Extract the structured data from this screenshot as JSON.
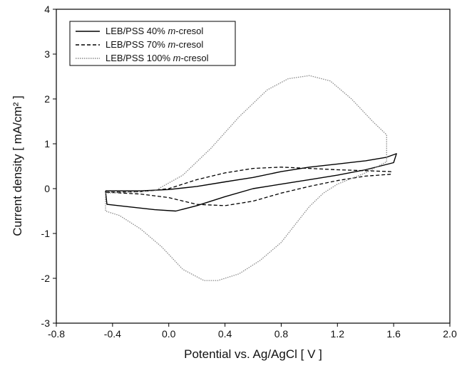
{
  "chart_data": {
    "type": "line",
    "xlabel": "Potential vs. Ag/AgCl  [ V ]",
    "ylabel": "Current density  [ mA/cm² ]",
    "xlim": [
      -0.8,
      2.0
    ],
    "ylim": [
      -3,
      4
    ],
    "xticks": [
      -0.8,
      -0.4,
      0.0,
      0.4,
      0.8,
      1.2,
      1.6,
      2.0
    ],
    "xtick_labels": [
      "-0.8",
      "-0.4",
      "0.0",
      "0.4",
      "0.8",
      "1.2",
      "1.6",
      "2.0"
    ],
    "yticks": [
      -3,
      -2,
      -1,
      0,
      1,
      2,
      3,
      4
    ],
    "ytick_labels": [
      "-3",
      "-2",
      "-1",
      "0",
      "1",
      "2",
      "3",
      "4"
    ],
    "grid": false,
    "legend_position": "top-left",
    "series": [
      {
        "name": "LEB/PSS  40% m-cresol",
        "legend_prefix": "LEB/PSS  40% ",
        "legend_italic": "m",
        "legend_suffix": "-cresol",
        "style": "solid",
        "color": "#000000",
        "x": [
          -0.45,
          -0.2,
          0.0,
          0.2,
          0.4,
          0.6,
          0.8,
          1.0,
          1.2,
          1.4,
          1.55,
          1.62,
          1.6,
          1.4,
          1.2,
          1.0,
          0.8,
          0.6,
          0.4,
          0.2,
          0.05,
          -0.1,
          -0.3,
          -0.44,
          -0.45
        ],
        "y": [
          -0.05,
          -0.05,
          -0.02,
          0.05,
          0.15,
          0.25,
          0.38,
          0.48,
          0.55,
          0.62,
          0.7,
          0.78,
          0.58,
          0.42,
          0.3,
          0.2,
          0.1,
          0.0,
          -0.18,
          -0.38,
          -0.5,
          -0.47,
          -0.4,
          -0.35,
          -0.05
        ]
      },
      {
        "name": "LEB/PSS  70% m-cresol",
        "legend_prefix": "LEB/PSS  70% ",
        "legend_italic": "m",
        "legend_suffix": "-cresol",
        "style": "dashed",
        "color": "#000000",
        "x": [
          -0.45,
          -0.2,
          0.0,
          0.2,
          0.4,
          0.6,
          0.8,
          1.0,
          1.2,
          1.4,
          1.58,
          1.58,
          1.4,
          1.2,
          1.0,
          0.8,
          0.6,
          0.4,
          0.2,
          0.0,
          -0.2,
          -0.45
        ],
        "y": [
          -0.08,
          -0.07,
          0.0,
          0.2,
          0.35,
          0.45,
          0.48,
          0.45,
          0.42,
          0.4,
          0.38,
          0.32,
          0.28,
          0.18,
          0.05,
          -0.1,
          -0.28,
          -0.38,
          -0.35,
          -0.2,
          -0.12,
          -0.08
        ]
      },
      {
        "name": "LEB/PSS 100% m-cresol",
        "legend_prefix": "LEB/PSS 100% ",
        "legend_italic": "m",
        "legend_suffix": "-cresol",
        "style": "dotted",
        "color": "#8a8a8a",
        "x": [
          -0.45,
          -0.3,
          -0.1,
          0.1,
          0.3,
          0.5,
          0.7,
          0.85,
          1.0,
          1.15,
          1.3,
          1.45,
          1.55,
          1.55,
          1.4,
          1.2,
          1.1,
          1.0,
          0.9,
          0.8,
          0.65,
          0.5,
          0.35,
          0.25,
          0.1,
          -0.05,
          -0.2,
          -0.35,
          -0.45,
          -0.45
        ],
        "y": [
          -0.1,
          -0.08,
          -0.05,
          0.3,
          0.9,
          1.6,
          2.2,
          2.45,
          2.52,
          2.4,
          2.0,
          1.5,
          1.2,
          0.6,
          0.35,
          0.1,
          -0.1,
          -0.4,
          -0.8,
          -1.2,
          -1.6,
          -1.9,
          -2.05,
          -2.05,
          -1.8,
          -1.3,
          -0.9,
          -0.6,
          -0.5,
          -0.1
        ]
      }
    ]
  }
}
